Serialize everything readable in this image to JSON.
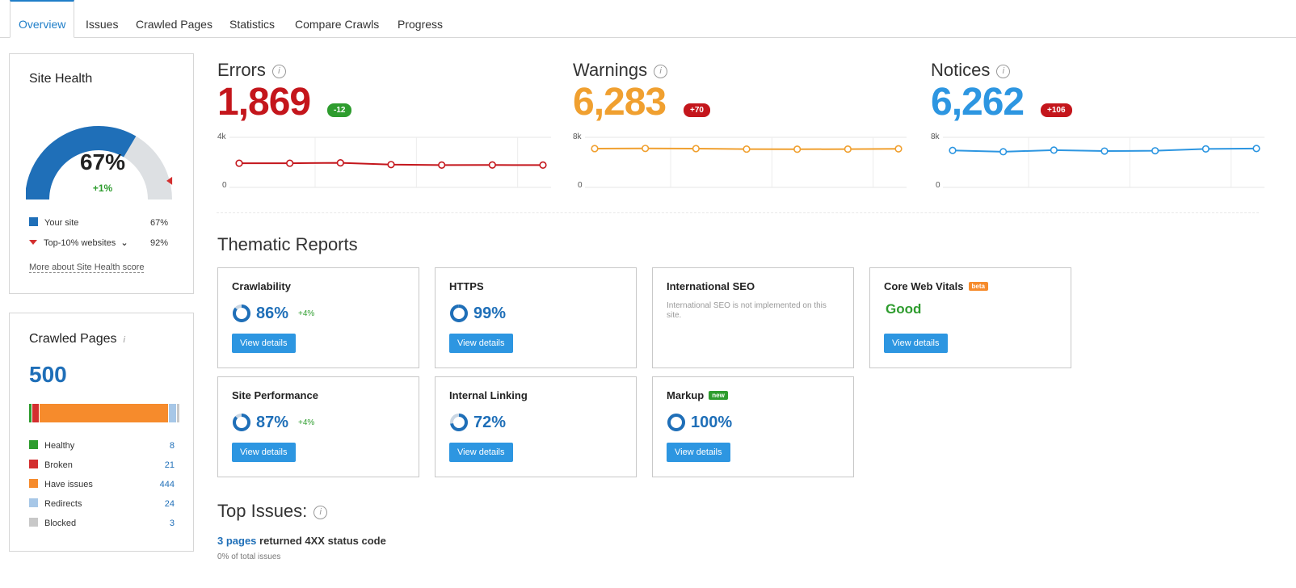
{
  "tabs": [
    "Overview",
    "Issues",
    "Crawled Pages",
    "Statistics",
    "Compare Crawls",
    "Progress"
  ],
  "site_health": {
    "title": "Site Health",
    "value": "67%",
    "delta": "+1%",
    "legend": [
      {
        "label": "Your site",
        "value": "67%"
      },
      {
        "label": "Top-10% websites",
        "value": "92%"
      }
    ],
    "more_link": "More about Site Health score",
    "colors": {
      "your_site": "#1f6fb8",
      "gauge_rest": "#dde0e3",
      "marker": "#d32f2f"
    },
    "score_fraction": 0.67,
    "top10_fraction": 0.92
  },
  "crawled_pages": {
    "title": "Crawled Pages",
    "total": "500",
    "items": [
      {
        "label": "Healthy",
        "value": "8",
        "color": "#2e9c2e",
        "count": 8
      },
      {
        "label": "Broken",
        "value": "21",
        "color": "#d32f2f",
        "count": 21
      },
      {
        "label": "Have issues",
        "value": "444",
        "color": "#f68b2c",
        "count": 444
      },
      {
        "label": "Redirects",
        "value": "24",
        "color": "#a7c7e7",
        "count": 24
      },
      {
        "label": "Blocked",
        "value": "3",
        "color": "#c8c8c8",
        "count": 3
      }
    ]
  },
  "metrics": [
    {
      "label": "Errors",
      "value": "1,869",
      "badge": "-12",
      "color": "#c4161c",
      "badge_color": "#2e9c2e",
      "ymax_label": "4k",
      "ymin_label": "0",
      "ymax": 4000,
      "series": [
        1930,
        1930,
        1960,
        1820,
        1780,
        1790,
        1780
      ]
    },
    {
      "label": "Warnings",
      "value": "6,283",
      "badge": "+70",
      "color": "#f0a030",
      "badge_color": "#c4161c",
      "ymax_label": "8k",
      "ymin_label": "0",
      "ymax": 8000,
      "series": [
        6200,
        6220,
        6200,
        6120,
        6100,
        6110,
        6160
      ]
    },
    {
      "label": "Notices",
      "value": "6,262",
      "badge": "+106",
      "color": "#2d96e1",
      "badge_color": "#c4161c",
      "ymax_label": "8k",
      "ymin_label": "0",
      "ymax": 8000,
      "series": [
        5900,
        5700,
        5950,
        5800,
        5850,
        6150,
        6210
      ]
    }
  ],
  "thematic": {
    "title": "Thematic Reports",
    "cards": [
      {
        "title": "Crawlability",
        "pct": "86%",
        "delta": "+4%",
        "button": "View details",
        "fraction": 0.86
      },
      {
        "title": "HTTPS",
        "pct": "99%",
        "delta": "",
        "button": "View details",
        "fraction": 0.99
      },
      {
        "title": "International SEO",
        "note": "International SEO is not implemented on this site."
      },
      {
        "title": "Core Web Vitals",
        "tag": "beta",
        "status": "Good",
        "button": "View details"
      },
      {
        "title": "Site Performance",
        "pct": "87%",
        "delta": "+4%",
        "button": "View details",
        "fraction": 0.87
      },
      {
        "title": "Internal Linking",
        "pct": "72%",
        "delta": "",
        "button": "View details",
        "fraction": 0.72
      },
      {
        "title": "Markup",
        "tag": "new",
        "pct": "100%",
        "delta": "",
        "button": "View details",
        "fraction": 1.0
      }
    ]
  },
  "top_issues": {
    "title": "Top Issues:",
    "issue_link": "3 pages",
    "issue_text": "returned 4XX status code",
    "issue_sub": "0% of total issues"
  }
}
